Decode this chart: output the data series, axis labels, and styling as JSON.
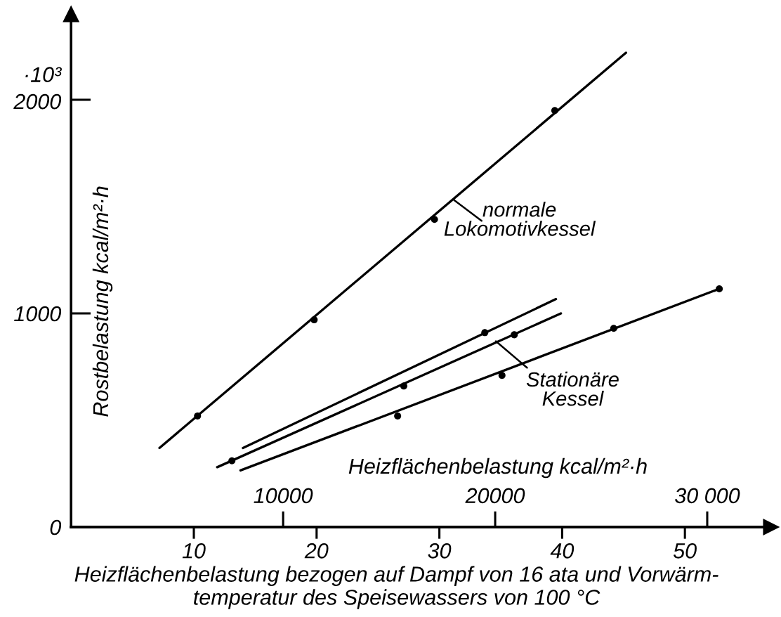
{
  "chart_data": {
    "type": "line",
    "xlabel": "Heizflächenbelastung bezogen auf Dampf von 16 ata und Vorwärm-\ntemperatur des Speisewassers von 100 °C",
    "ylabel": "Rostbelastung kcal/m²·h",
    "x2label": "Heizflächenbelastung kcal/m²·h",
    "xlim": [
      0,
      57
    ],
    "xticks": [
      10,
      20,
      30,
      40,
      50
    ],
    "x2lim": [
      0,
      33000
    ],
    "x2ticks": [
      10000,
      20000,
      {
        "value": 30000,
        "label": "30 000"
      }
    ],
    "ylim": [
      0,
      2400
    ],
    "yticks": [
      0,
      1000,
      {
        "value": 2000,
        "label": "·10³\n2000"
      }
    ],
    "annotations": [
      {
        "text": "normale\nLokomotivkessel",
        "x": 31.2,
        "y": 1530
      },
      {
        "text": "Stationäre\nKessel",
        "x": 34.6,
        "y": 870
      }
    ],
    "series": [
      {
        "x": [
          7.2,
          45.2
        ],
        "values": [
          370,
          2220
        ],
        "color": "#000000"
      },
      {
        "type": "scatter",
        "marker": "circle",
        "x": [
          10.3,
          19.8,
          29.6,
          39.4
        ],
        "values": [
          520,
          970,
          1440,
          1950
        ],
        "color": "#000000"
      },
      {
        "x": [
          14.0,
          39.5
        ],
        "values": [
          370,
          1067
        ],
        "color": "#000000"
      },
      {
        "type": "scatter",
        "marker": "circle",
        "x": [
          33.7
        ],
        "values": [
          910
        ],
        "color": "#000000"
      },
      {
        "x": [
          11.9,
          39.9
        ],
        "values": [
          280,
          1000
        ],
        "color": "#000000"
      },
      {
        "type": "scatter",
        "marker": "circle",
        "x": [
          13.1,
          27.1,
          36.1
        ],
        "values": [
          310,
          660,
          900
        ],
        "color": "#000000"
      },
      {
        "x": [
          13.8,
          52.8
        ],
        "values": [
          265,
          1115
        ],
        "color": "#000000"
      },
      {
        "type": "scatter",
        "marker": "circle",
        "x": [
          26.6,
          35.1,
          44.2,
          52.8
        ],
        "values": [
          520,
          710,
          930,
          1115
        ],
        "color": "#000000"
      }
    ]
  }
}
